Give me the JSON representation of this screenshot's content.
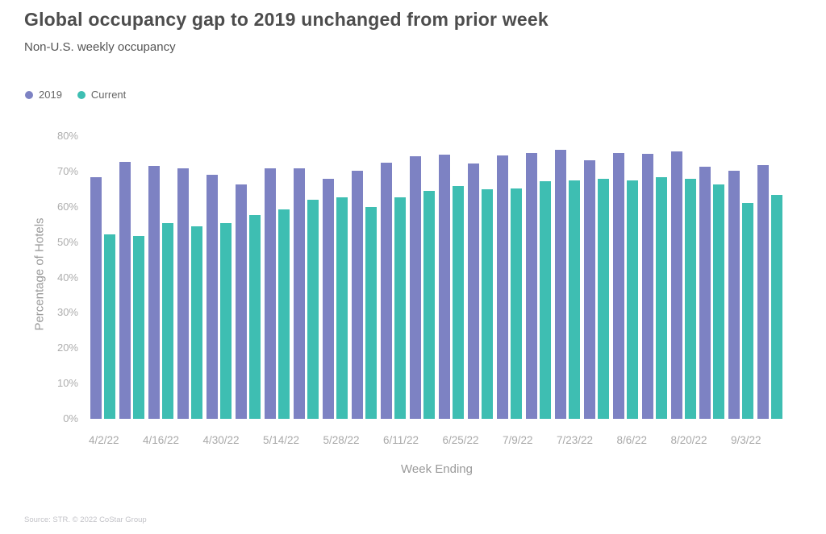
{
  "page": {
    "title": "Global occupancy gap to 2019 unchanged from prior week",
    "subtitle": "Non-U.S. weekly occupancy",
    "source_note": "Source: STR. © 2022 CoStar Group"
  },
  "colors": {
    "series_2019": "#7d82c3",
    "series_current": "#3ebeb2",
    "title_text": "#4d4d4d",
    "axis_text": "#a9a9a9"
  },
  "legend": {
    "items": [
      {
        "label": "2019",
        "color": "#7d82c3"
      },
      {
        "label": "Current",
        "color": "#3ebeb2"
      }
    ]
  },
  "chart_data": {
    "type": "bar",
    "title": "Global occupancy gap to 2019 unchanged from prior week",
    "subtitle": "Non-U.S. weekly occupancy",
    "xlabel": "Week Ending",
    "ylabel": "Percentage of Hotels",
    "ylim": [
      0,
      80
    ],
    "ytick_step": 10,
    "ytick_labels": [
      "80%",
      "70%",
      "60%",
      "50%",
      "40%",
      "30%",
      "20%",
      "10%",
      "0%"
    ],
    "grid": false,
    "legend_position": "top-left",
    "xtick_every": 2,
    "xtick_labels_shown": [
      "4/2/22",
      "4/16/22",
      "4/30/22",
      "5/14/22",
      "5/28/22",
      "6/11/22",
      "6/25/22",
      "7/9/22",
      "7/23/22",
      "8/6/22",
      "8/20/22",
      "9/3/22"
    ],
    "categories": [
      "4/2/22",
      "4/9/22",
      "4/16/22",
      "4/23/22",
      "4/30/22",
      "5/7/22",
      "5/14/22",
      "5/21/22",
      "5/28/22",
      "6/4/22",
      "6/11/22",
      "6/18/22",
      "6/25/22",
      "7/2/22",
      "7/9/22",
      "7/16/22",
      "7/23/22",
      "7/30/22",
      "8/6/22",
      "8/13/22",
      "8/20/22",
      "8/27/22",
      "9/3/22",
      "9/10/22"
    ],
    "series": [
      {
        "name": "2019",
        "color": "#7d82c3",
        "values": [
          68.3,
          72.7,
          71.6,
          71.0,
          69.0,
          66.4,
          70.9,
          71.0,
          68.0,
          70.1,
          72.4,
          74.2,
          74.7,
          72.2,
          74.6,
          75.3,
          76.1,
          73.1,
          75.3,
          75.1,
          75.7,
          71.3,
          70.1,
          71.8
        ]
      },
      {
        "name": "Current",
        "color": "#3ebeb2",
        "values": [
          52.2,
          51.7,
          55.3,
          54.5,
          55.5,
          57.7,
          59.2,
          62.1,
          62.8,
          60.0,
          62.6,
          64.6,
          65.8,
          64.9,
          65.2,
          67.2,
          67.5,
          68.0,
          67.4,
          68.5,
          67.9,
          66.3,
          61.1,
          63.4
        ]
      }
    ]
  }
}
